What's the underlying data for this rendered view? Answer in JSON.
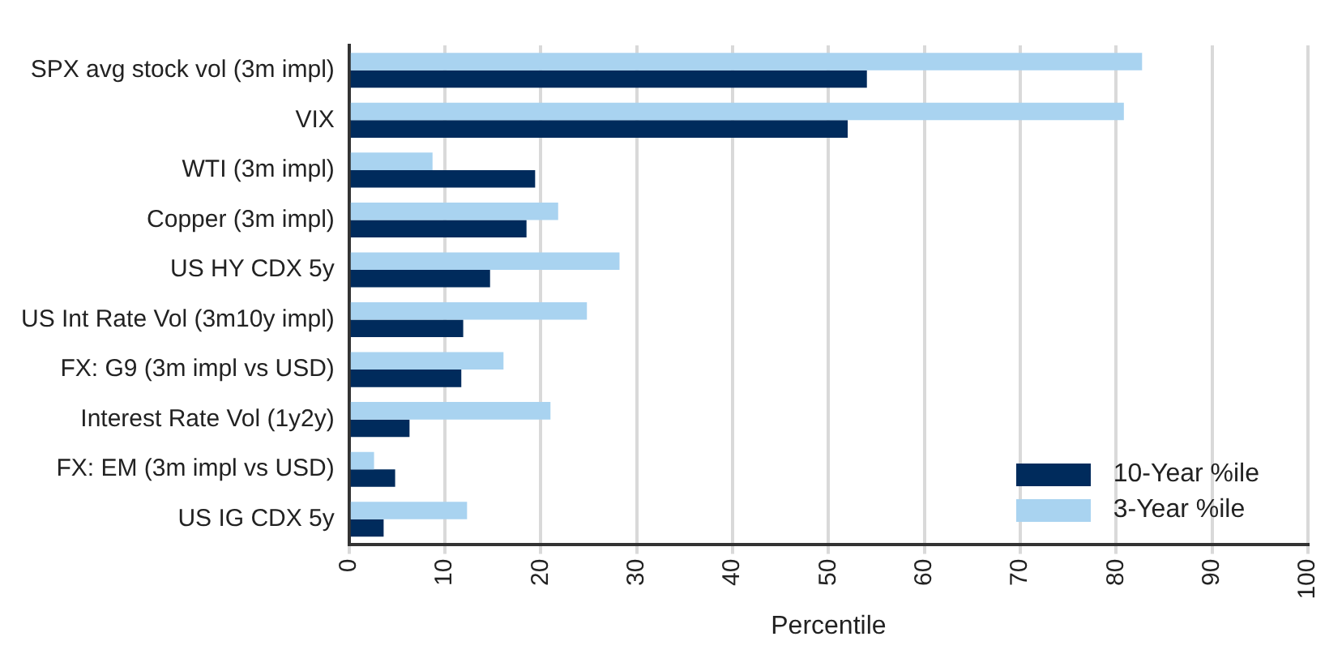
{
  "chart_data": {
    "type": "bar",
    "orientation": "horizontal",
    "xlabel": "Percentile",
    "categories": [
      "SPX avg stock vol (3m impl)",
      "VIX",
      "WTI (3m impl)",
      "Copper (3m impl)",
      "US HY CDX 5y",
      "US Int Rate Vol (3m10y impl)",
      "FX: G9 (3m impl vs USD)",
      "Interest Rate Vol (1y2y)",
      "FX: EM (3m impl vs USD)",
      "US IG CDX 5y"
    ],
    "series": [
      {
        "name": "10-Year %ile",
        "color": "#002b5c",
        "values": [
          54,
          52,
          19.4,
          18.5,
          14.7,
          11.9,
          11.7,
          6.3,
          4.8,
          3.6
        ]
      },
      {
        "name": "3-Year %ile",
        "color": "#a9d3f0",
        "values": [
          82.7,
          80.8,
          8.7,
          21.8,
          28.2,
          24.8,
          16.1,
          21,
          2.6,
          12.3
        ]
      }
    ],
    "xlim": [
      0,
      100
    ],
    "xticks": [
      0,
      10,
      20,
      30,
      40,
      50,
      60,
      70,
      80,
      90,
      100
    ],
    "grid": "x",
    "legend": "bottom right"
  }
}
